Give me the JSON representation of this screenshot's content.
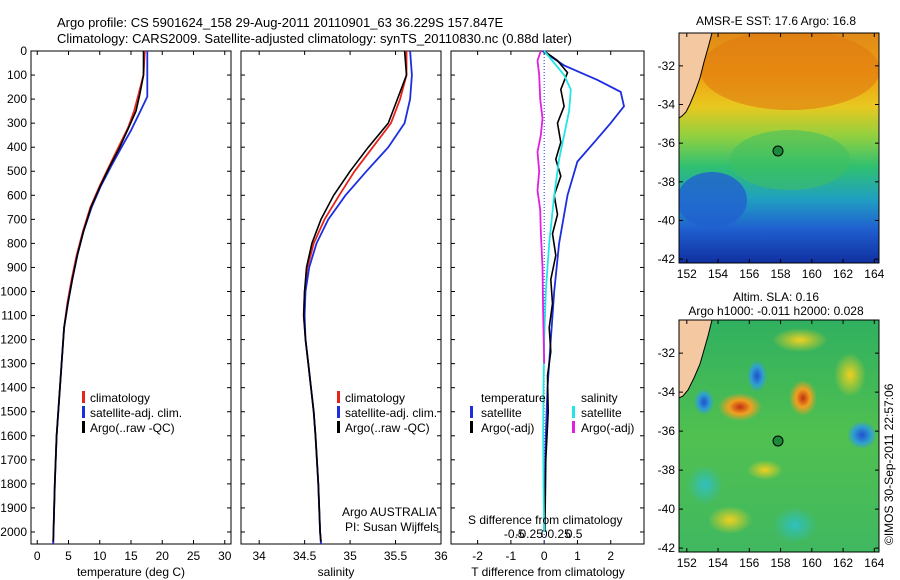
{
  "header": {
    "line1": "Argo profile: CS 5901624_158 29-Aug-2011 20110901_63 36.229S 157.847E",
    "line2": "Climatology: CARS2009. Satellite-adjusted climatology: synTS_20110830.nc (0.88d later)"
  },
  "credit": "Argo AUSTRALIA",
  "credit_pi": "PI: Susan Wijffels",
  "stamp": "©IMOS 30-Sep-2011 22:57:06",
  "colors": {
    "climatology": "#e8231c",
    "satellite": "#1c2ee0",
    "argo": "#000000",
    "salinity_satellite": "#22e6e6",
    "salinity_argo": "#e020e0"
  },
  "chart_data": [
    {
      "type": "line",
      "panel": "temperature",
      "xlabel": "temperature (deg C)",
      "xlim": [
        -1,
        31
      ],
      "ylim": [
        2050,
        0
      ],
      "xticks": [
        "0",
        "5",
        "10",
        "15",
        "20",
        "25",
        "30"
      ],
      "yticks": [
        "0",
        "100",
        "200",
        "300",
        "400",
        "500",
        "600",
        "700",
        "800",
        "900",
        "1000",
        "1100",
        "1200",
        "1300",
        "1400",
        "1500",
        "1600",
        "1700",
        "1800",
        "1900",
        "2000"
      ],
      "legend": [
        "climatology",
        "satellite-adj. clim.",
        "Argo(..raw -QC)"
      ],
      "series": [
        {
          "name": "climatology",
          "color": "red",
          "points": [
            [
              17.2,
              0
            ],
            [
              17.0,
              100
            ],
            [
              16.2,
              180
            ],
            [
              15.5,
              250
            ],
            [
              14.5,
              320
            ],
            [
              13.0,
              400
            ],
            [
              11.5,
              480
            ],
            [
              10.0,
              560
            ],
            [
              8.5,
              650
            ],
            [
              7.3,
              750
            ],
            [
              6.3,
              850
            ],
            [
              5.5,
              950
            ],
            [
              4.8,
              1050
            ],
            [
              4.3,
              1150
            ],
            [
              3.9,
              1300
            ],
            [
              3.5,
              1450
            ],
            [
              3.1,
              1600
            ],
            [
              2.8,
              1800
            ],
            [
              2.6,
              2000
            ],
            [
              2.55,
              2050
            ]
          ]
        },
        {
          "name": "satellite-adj. clim.",
          "color": "blue",
          "points": [
            [
              17.6,
              0
            ],
            [
              17.6,
              100
            ],
            [
              17.6,
              190
            ],
            [
              16.5,
              250
            ],
            [
              15.0,
              330
            ],
            [
              13.5,
              400
            ],
            [
              11.8,
              480
            ],
            [
              10.2,
              560
            ],
            [
              8.7,
              650
            ],
            [
              7.4,
              750
            ],
            [
              6.4,
              850
            ],
            [
              5.6,
              950
            ],
            [
              4.9,
              1050
            ],
            [
              4.3,
              1150
            ],
            [
              3.9,
              1300
            ],
            [
              3.5,
              1450
            ],
            [
              3.1,
              1600
            ],
            [
              2.8,
              1800
            ],
            [
              2.6,
              2000
            ],
            [
              2.55,
              2050
            ]
          ]
        },
        {
          "name": "Argo(..raw -QC)",
          "color": "black",
          "points": [
            [
              17.0,
              0
            ],
            [
              17.0,
              100
            ],
            [
              16.4,
              180
            ],
            [
              15.8,
              250
            ],
            [
              14.6,
              320
            ],
            [
              13.2,
              400
            ],
            [
              11.6,
              480
            ],
            [
              10.1,
              560
            ],
            [
              8.6,
              650
            ],
            [
              7.4,
              750
            ],
            [
              6.4,
              850
            ],
            [
              5.6,
              950
            ],
            [
              4.9,
              1050
            ],
            [
              4.3,
              1150
            ],
            [
              3.9,
              1300
            ],
            [
              3.5,
              1450
            ],
            [
              3.1,
              1600
            ],
            [
              2.8,
              1800
            ],
            [
              2.6,
              2000
            ],
            [
              2.55,
              2040
            ]
          ]
        }
      ]
    },
    {
      "type": "line",
      "panel": "salinity",
      "xlabel": "salinity",
      "xlim": [
        33.8,
        36.0
      ],
      "ylim": [
        2050,
        0
      ],
      "xticks": [
        "34",
        "34.5",
        "35",
        "35.5",
        "36"
      ],
      "legend": [
        "climatology",
        "satellite-adj. clim.",
        "Argo(..raw -QC)"
      ],
      "series": [
        {
          "name": "climatology",
          "color": "red",
          "points": [
            [
              35.62,
              0
            ],
            [
              35.62,
              100
            ],
            [
              35.55,
              200
            ],
            [
              35.45,
              300
            ],
            [
              35.25,
              400
            ],
            [
              35.05,
              500
            ],
            [
              34.88,
              600
            ],
            [
              34.72,
              700
            ],
            [
              34.6,
              800
            ],
            [
              34.53,
              900
            ],
            [
              34.5,
              1000
            ],
            [
              34.49,
              1100
            ],
            [
              34.51,
              1200
            ],
            [
              34.54,
              1300
            ],
            [
              34.57,
              1400
            ],
            [
              34.6,
              1500
            ],
            [
              34.62,
              1600
            ],
            [
              34.65,
              1800
            ],
            [
              34.67,
              2000
            ],
            [
              34.68,
              2050
            ]
          ]
        },
        {
          "name": "satellite-adj. clim.",
          "color": "blue",
          "points": [
            [
              35.66,
              0
            ],
            [
              35.68,
              100
            ],
            [
              35.66,
              200
            ],
            [
              35.6,
              300
            ],
            [
              35.42,
              400
            ],
            [
              35.18,
              500
            ],
            [
              34.95,
              600
            ],
            [
              34.76,
              700
            ],
            [
              34.63,
              800
            ],
            [
              34.55,
              900
            ],
            [
              34.51,
              1000
            ],
            [
              34.5,
              1100
            ],
            [
              34.51,
              1200
            ],
            [
              34.54,
              1300
            ],
            [
              34.57,
              1400
            ],
            [
              34.6,
              1500
            ],
            [
              34.62,
              1600
            ],
            [
              34.65,
              1800
            ],
            [
              34.67,
              2000
            ],
            [
              34.68,
              2050
            ]
          ]
        },
        {
          "name": "Argo(..raw -QC)",
          "color": "black",
          "points": [
            [
              35.6,
              0
            ],
            [
              35.62,
              100
            ],
            [
              35.52,
              200
            ],
            [
              35.42,
              300
            ],
            [
              35.2,
              400
            ],
            [
              35.0,
              500
            ],
            [
              34.82,
              600
            ],
            [
              34.68,
              700
            ],
            [
              34.58,
              800
            ],
            [
              34.52,
              900
            ],
            [
              34.5,
              1000
            ],
            [
              34.49,
              1100
            ],
            [
              34.51,
              1200
            ],
            [
              34.54,
              1300
            ],
            [
              34.57,
              1400
            ],
            [
              34.6,
              1500
            ],
            [
              34.62,
              1600
            ],
            [
              34.65,
              1800
            ],
            [
              34.67,
              2000
            ],
            [
              34.68,
              2040
            ]
          ]
        }
      ]
    },
    {
      "type": "line",
      "panel": "differences",
      "xlabel": "T difference from climatology",
      "xlabel_top": "S difference from climatology",
      "xlim": [
        -2.8,
        3.0
      ],
      "ylim": [
        2050,
        0
      ],
      "xticks": [
        "-2",
        "-1",
        "0",
        "1",
        "2"
      ],
      "xticks_s": [
        "-0.5",
        "-0.25",
        "0",
        "0.25",
        "0.5"
      ],
      "legend_t_title": "temperature",
      "legend_s_title": "salinity",
      "legend_t": [
        "satellite",
        "Argo(-adj)"
      ],
      "legend_s": [
        "satellite",
        "Argo(-adj)"
      ],
      "series": [
        {
          "name": "temperature satellite",
          "color": "blue",
          "points": [
            [
              -0.05,
              0
            ],
            [
              0.6,
              60
            ],
            [
              1.6,
              120
            ],
            [
              2.3,
              170
            ],
            [
              2.4,
              230
            ],
            [
              2.0,
              300
            ],
            [
              1.5,
              380
            ],
            [
              1.0,
              460
            ],
            [
              0.7,
              600
            ],
            [
              0.45,
              800
            ],
            [
              0.3,
              1000
            ],
            [
              0.2,
              1200
            ],
            [
              0.1,
              1400
            ],
            [
              0.05,
              1600
            ],
            [
              0.02,
              1800
            ],
            [
              0,
              2000
            ]
          ]
        },
        {
          "name": "temperature Argo(-adj)",
          "color": "black",
          "points": [
            [
              0,
              0
            ],
            [
              0.4,
              40
            ],
            [
              0.7,
              90
            ],
            [
              0.5,
              160
            ],
            [
              0.6,
              230
            ],
            [
              0.4,
              300
            ],
            [
              0.5,
              380
            ],
            [
              0.35,
              450
            ],
            [
              0.5,
              520
            ],
            [
              0.3,
              600
            ],
            [
              0.4,
              680
            ],
            [
              0.25,
              760
            ],
            [
              0.35,
              850
            ],
            [
              0.2,
              950
            ],
            [
              0.25,
              1050
            ],
            [
              0.15,
              1150
            ],
            [
              0.2,
              1250
            ],
            [
              0.1,
              1350
            ],
            [
              0.12,
              1500
            ],
            [
              0.05,
              1700
            ],
            [
              0.03,
              1900
            ],
            [
              0.02,
              2000
            ]
          ]
        },
        {
          "name": "salinity satellite",
          "color": "cyan",
          "points": [
            [
              0,
              0
            ],
            [
              0.3,
              50
            ],
            [
              0.6,
              100
            ],
            [
              0.8,
              160
            ],
            [
              0.75,
              250
            ],
            [
              0.6,
              350
            ],
            [
              0.45,
              450
            ],
            [
              0.3,
              600
            ],
            [
              0.15,
              800
            ],
            [
              0.05,
              1000
            ],
            [
              0,
              1200
            ],
            [
              -0.02,
              1400
            ],
            [
              -0.03,
              1600
            ],
            [
              -0.02,
              1800
            ],
            [
              0,
              2000
            ]
          ]
        },
        {
          "name": "salinity Argo(-adj)",
          "color": "magenta",
          "points": [
            [
              -0.1,
              0
            ],
            [
              -0.2,
              40
            ],
            [
              -0.15,
              100
            ],
            [
              -0.12,
              200
            ],
            [
              -0.05,
              280
            ],
            [
              -0.1,
              350
            ],
            [
              -0.2,
              420
            ],
            [
              -0.15,
              500
            ],
            [
              -0.2,
              580
            ],
            [
              -0.12,
              660
            ],
            [
              -0.1,
              750
            ],
            [
              -0.05,
              900
            ],
            [
              -0.03,
              1100
            ],
            [
              0,
              1300
            ]
          ]
        }
      ]
    },
    {
      "type": "heatmap",
      "panel": "map_sst",
      "title": "AMSR-E SST: 17.6  Argo: 16.8",
      "xticks": [
        "152",
        "154",
        "156",
        "158",
        "160",
        "162",
        "164"
      ],
      "yticks": [
        "-32",
        "-34",
        "-36",
        "-38",
        "-40",
        "-42"
      ],
      "xlim": [
        151.5,
        164.3
      ],
      "ylim": [
        -42.2,
        -30.3
      ],
      "marker": {
        "lon": 157.85,
        "lat": -36.23
      }
    },
    {
      "type": "heatmap",
      "panel": "map_sla",
      "title": "Altim. SLA: 0.16",
      "subtitle": "Argo h1000: -0.011 h2000: 0.028",
      "xticks": [
        "152",
        "154",
        "156",
        "158",
        "160",
        "162",
        "164"
      ],
      "yticks": [
        "-32",
        "-34",
        "-36",
        "-38",
        "-40",
        "-42"
      ],
      "xlim": [
        151.5,
        164.3
      ],
      "ylim": [
        -42.2,
        -30.3
      ],
      "marker": {
        "lon": 157.85,
        "lat": -36.23
      }
    }
  ]
}
